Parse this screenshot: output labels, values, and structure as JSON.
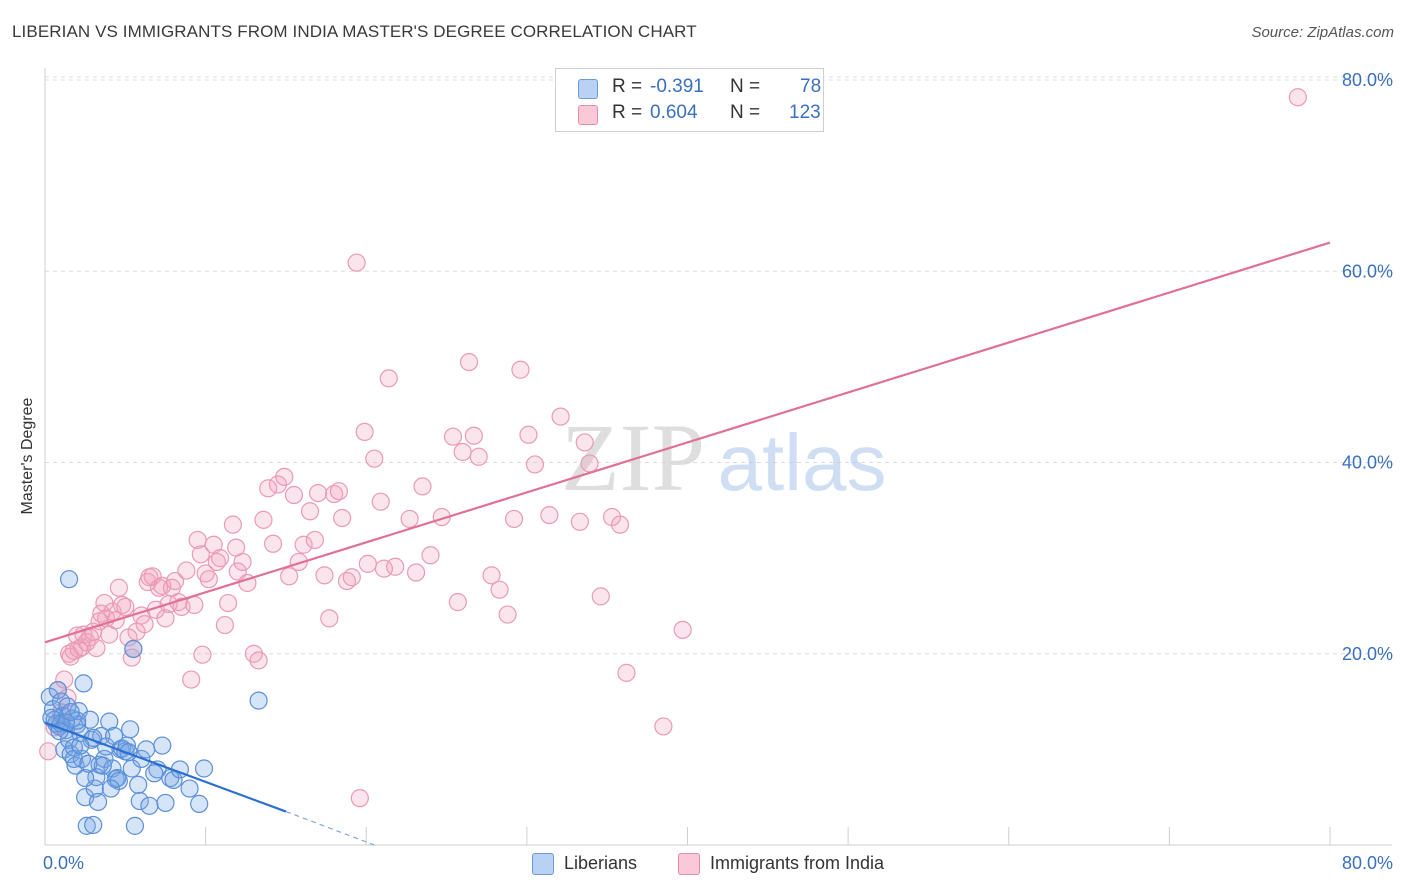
{
  "title": "LIBERIAN VS IMMIGRANTS FROM INDIA MASTER'S DEGREE CORRELATION CHART",
  "source": "Source: ZipAtlas.com",
  "watermark": {
    "zip": "ZIP",
    "atlas": "atlas"
  },
  "legend": {
    "r_label": "R =",
    "n_label": "N =",
    "series": [
      {
        "r": "-0.391",
        "n": "78"
      },
      {
        "r": "0.604",
        "n": "123"
      }
    ]
  },
  "bottom_legend": [
    "Liberians",
    "Immigrants from India"
  ],
  "chart_data": {
    "type": "scatter",
    "title": "LIBERIAN VS IMMIGRANTS FROM INDIA MASTER'S DEGREE CORRELATION CHART",
    "xlabel": "",
    "ylabel": "Master's Degree",
    "xlim": [
      0,
      80
    ],
    "ylim": [
      0,
      80
    ],
    "x_tick_labels": [
      "0.0%",
      "80.0%"
    ],
    "y_tick_labels": [
      "20.0%",
      "40.0%",
      "60.0%",
      "80.0%"
    ],
    "y_ticks": [
      20,
      40,
      60,
      80
    ],
    "colors": {
      "Liberians": "#5b8fd9",
      "Immigrants from India": "#e88aa8",
      "liberians_line": "#2a6fd0",
      "india_line": "#e07098",
      "tick_text": "#3a6fc0"
    },
    "series": [
      {
        "name": "Liberians",
        "r": -0.391,
        "n": 78,
        "trend": {
          "x": [
            0,
            15
          ],
          "y": [
            12.8,
            3.5
          ],
          "dashed_to": [
            20.5,
            0
          ]
        },
        "points": [
          [
            0.3,
            15.5
          ],
          [
            0.5,
            14.2
          ],
          [
            0.6,
            13.1
          ],
          [
            0.8,
            16.2
          ],
          [
            0.9,
            12.4
          ],
          [
            1.0,
            15.0
          ],
          [
            1.1,
            13.5
          ],
          [
            1.2,
            10.0
          ],
          [
            1.3,
            12.0
          ],
          [
            1.4,
            14.5
          ],
          [
            1.5,
            11.0
          ],
          [
            1.6,
            9.5
          ],
          [
            1.7,
            13.2
          ],
          [
            1.8,
            10.2
          ],
          [
            1.9,
            8.3
          ],
          [
            2.0,
            12.6
          ],
          [
            2.1,
            14.0
          ],
          [
            2.2,
            11.7
          ],
          [
            2.3,
            9.0
          ],
          [
            2.4,
            16.9
          ],
          [
            2.5,
            5.0
          ],
          [
            2.6,
            2.0
          ],
          [
            2.8,
            13.1
          ],
          [
            2.9,
            11.0
          ],
          [
            3.0,
            2.1
          ],
          [
            3.1,
            5.9
          ],
          [
            3.2,
            7.1
          ],
          [
            3.3,
            4.5
          ],
          [
            3.4,
            8.4
          ],
          [
            3.5,
            11.4
          ],
          [
            3.7,
            9.0
          ],
          [
            3.8,
            10.3
          ],
          [
            4.0,
            12.9
          ],
          [
            4.2,
            8.0
          ],
          [
            4.3,
            11.4
          ],
          [
            4.4,
            6.9
          ],
          [
            4.5,
            7.0
          ],
          [
            4.6,
            6.7
          ],
          [
            4.7,
            10.0
          ],
          [
            4.8,
            10.1
          ],
          [
            5.0,
            9.8
          ],
          [
            5.1,
            10.4
          ],
          [
            5.3,
            12.1
          ],
          [
            5.4,
            8.0
          ],
          [
            5.5,
            20.5
          ],
          [
            5.6,
            2.0
          ],
          [
            5.8,
            6.3
          ],
          [
            5.9,
            4.6
          ],
          [
            6.0,
            9.0
          ],
          [
            6.3,
            10.0
          ],
          [
            6.5,
            4.1
          ],
          [
            7.0,
            7.9
          ],
          [
            7.3,
            10.4
          ],
          [
            7.5,
            4.4
          ],
          [
            7.8,
            7.0
          ],
          [
            8.0,
            6.8
          ],
          [
            8.4,
            7.9
          ],
          [
            9.0,
            5.9
          ],
          [
            9.6,
            4.3
          ],
          [
            9.9,
            8.0
          ],
          [
            13.3,
            15.1
          ],
          [
            1.5,
            27.8
          ],
          [
            0.7,
            12.7
          ],
          [
            1.0,
            12.7
          ],
          [
            2.0,
            13.0
          ],
          [
            2.5,
            7.0
          ],
          [
            1.8,
            9.0
          ],
          [
            3.0,
            11.2
          ],
          [
            0.4,
            13.3
          ],
          [
            1.3,
            12.8
          ],
          [
            2.2,
            10.4
          ],
          [
            1.6,
            13.9
          ],
          [
            0.9,
            11.9
          ],
          [
            3.6,
            8.3
          ],
          [
            4.1,
            5.9
          ],
          [
            2.7,
            8.5
          ],
          [
            6.8,
            7.5
          ],
          [
            5.2,
            9.7
          ]
        ]
      },
      {
        "name": "Immigrants from India",
        "r": 0.604,
        "n": 123,
        "trend": {
          "x": [
            0,
            80
          ],
          "y": [
            21.2,
            63.0
          ]
        },
        "points": [
          [
            0.2,
            9.8
          ],
          [
            0.6,
            12.3
          ],
          [
            0.8,
            16.2
          ],
          [
            1.0,
            13.9
          ],
          [
            1.2,
            17.3
          ],
          [
            1.4,
            15.4
          ],
          [
            1.5,
            20.0
          ],
          [
            1.6,
            19.7
          ],
          [
            1.8,
            20.3
          ],
          [
            2.0,
            21.9
          ],
          [
            2.1,
            20.5
          ],
          [
            2.3,
            20.7
          ],
          [
            2.4,
            22.0
          ],
          [
            2.6,
            21.2
          ],
          [
            2.8,
            21.7
          ],
          [
            3.0,
            22.3
          ],
          [
            3.2,
            20.6
          ],
          [
            3.4,
            23.4
          ],
          [
            3.5,
            24.2
          ],
          [
            3.7,
            25.3
          ],
          [
            3.8,
            23.7
          ],
          [
            4.0,
            22.0
          ],
          [
            4.2,
            24.4
          ],
          [
            4.4,
            23.5
          ],
          [
            4.6,
            26.9
          ],
          [
            4.8,
            25.1
          ],
          [
            5.0,
            24.9
          ],
          [
            5.2,
            21.7
          ],
          [
            5.4,
            19.6
          ],
          [
            5.5,
            20.5
          ],
          [
            5.7,
            22.3
          ],
          [
            6.0,
            24.0
          ],
          [
            6.2,
            23.1
          ],
          [
            6.4,
            27.5
          ],
          [
            6.5,
            28.0
          ],
          [
            6.7,
            28.1
          ],
          [
            6.9,
            24.6
          ],
          [
            7.1,
            26.9
          ],
          [
            7.3,
            27.1
          ],
          [
            7.5,
            23.7
          ],
          [
            7.7,
            25.2
          ],
          [
            7.9,
            26.9
          ],
          [
            8.1,
            27.6
          ],
          [
            8.3,
            25.4
          ],
          [
            8.5,
            24.9
          ],
          [
            8.8,
            28.7
          ],
          [
            9.1,
            17.3
          ],
          [
            9.3,
            25.1
          ],
          [
            9.5,
            31.9
          ],
          [
            9.7,
            30.4
          ],
          [
            9.8,
            19.9
          ],
          [
            10.0,
            28.4
          ],
          [
            10.2,
            27.8
          ],
          [
            10.5,
            31.4
          ],
          [
            10.7,
            29.6
          ],
          [
            10.9,
            30.0
          ],
          [
            11.2,
            23.0
          ],
          [
            11.4,
            25.3
          ],
          [
            11.7,
            33.5
          ],
          [
            11.9,
            31.1
          ],
          [
            12.0,
            28.6
          ],
          [
            12.3,
            29.6
          ],
          [
            12.6,
            27.4
          ],
          [
            13.0,
            20.0
          ],
          [
            13.3,
            19.3
          ],
          [
            13.6,
            34.0
          ],
          [
            13.9,
            37.3
          ],
          [
            14.2,
            31.5
          ],
          [
            14.5,
            37.7
          ],
          [
            14.9,
            38.5
          ],
          [
            15.2,
            28.1
          ],
          [
            15.5,
            36.6
          ],
          [
            15.8,
            29.6
          ],
          [
            16.1,
            31.4
          ],
          [
            16.5,
            34.9
          ],
          [
            16.8,
            31.9
          ],
          [
            17.0,
            36.8
          ],
          [
            17.4,
            28.2
          ],
          [
            17.7,
            23.7
          ],
          [
            18.0,
            36.7
          ],
          [
            18.3,
            37.0
          ],
          [
            18.5,
            34.2
          ],
          [
            18.8,
            27.6
          ],
          [
            19.1,
            28.0
          ],
          [
            19.4,
            60.9
          ],
          [
            19.6,
            4.9
          ],
          [
            19.9,
            43.2
          ],
          [
            20.1,
            29.4
          ],
          [
            20.5,
            40.4
          ],
          [
            20.9,
            35.9
          ],
          [
            21.1,
            28.9
          ],
          [
            21.4,
            48.8
          ],
          [
            21.8,
            29.1
          ],
          [
            22.7,
            34.1
          ],
          [
            23.1,
            28.5
          ],
          [
            23.5,
            37.5
          ],
          [
            24.0,
            30.3
          ],
          [
            24.7,
            34.3
          ],
          [
            25.4,
            42.7
          ],
          [
            25.7,
            25.4
          ],
          [
            26.0,
            41.1
          ],
          [
            26.4,
            50.5
          ],
          [
            26.7,
            42.8
          ],
          [
            27.0,
            40.6
          ],
          [
            27.8,
            28.2
          ],
          [
            28.3,
            26.7
          ],
          [
            28.8,
            24.1
          ],
          [
            29.2,
            34.1
          ],
          [
            29.6,
            49.7
          ],
          [
            30.1,
            42.9
          ],
          [
            30.5,
            39.8
          ],
          [
            31.4,
            34.5
          ],
          [
            32.1,
            44.8
          ],
          [
            33.3,
            33.8
          ],
          [
            33.6,
            42.1
          ],
          [
            33.9,
            39.9
          ],
          [
            34.6,
            26.0
          ],
          [
            35.3,
            34.3
          ],
          [
            35.8,
            33.5
          ],
          [
            36.2,
            18.0
          ],
          [
            38.5,
            12.4
          ],
          [
            39.7,
            22.5
          ],
          [
            78.0,
            78.2
          ]
        ]
      }
    ]
  }
}
